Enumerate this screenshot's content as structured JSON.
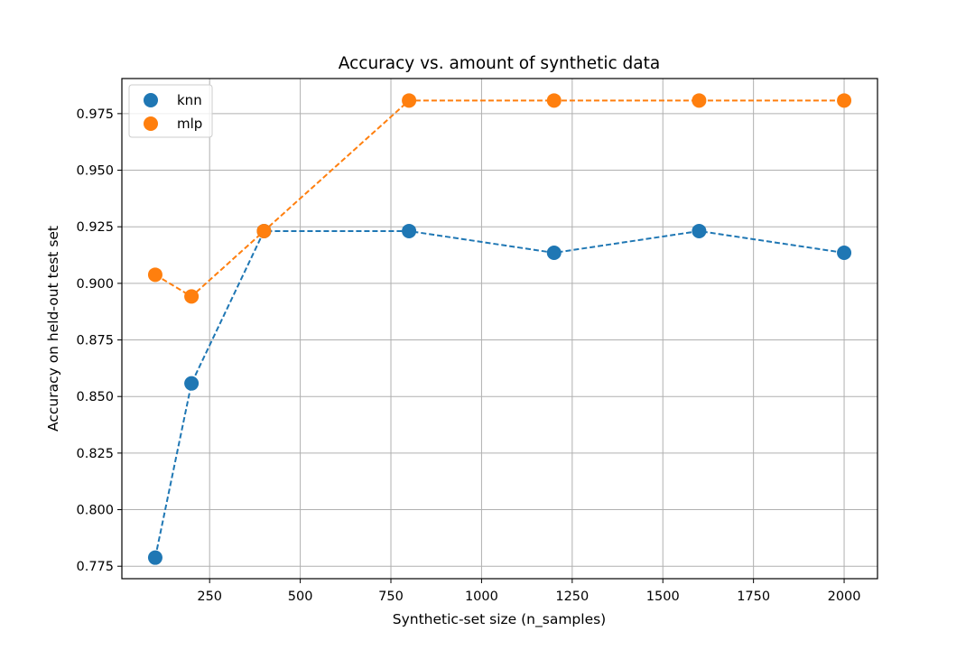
{
  "chart_data": {
    "type": "scatter",
    "title": "Accuracy vs. amount of synthetic data",
    "xlabel": "Synthetic-set size (n_samples)",
    "ylabel": "Accuracy on held-out test set",
    "xlim": [
      8,
      2092
    ],
    "ylim": [
      0.7695,
      0.9905
    ],
    "xticks": [
      250,
      500,
      750,
      1000,
      1250,
      1500,
      1750,
      2000
    ],
    "xtick_labels": [
      "250",
      "500",
      "750",
      "1000",
      "1250",
      "1500",
      "1750",
      "2000"
    ],
    "yticks": [
      0.775,
      0.8,
      0.825,
      0.85,
      0.875,
      0.9,
      0.925,
      0.95,
      0.975
    ],
    "ytick_labels": [
      "0.775",
      "0.800",
      "0.825",
      "0.850",
      "0.875",
      "0.900",
      "0.925",
      "0.950",
      "0.975"
    ],
    "grid": true,
    "legend_position": "top-left",
    "x": [
      100,
      200,
      400,
      800,
      1200,
      1600,
      2000
    ],
    "series": [
      {
        "name": "knn",
        "color": "#1f77b4",
        "values": [
          0.7788,
          0.8558,
          0.9231,
          0.9231,
          0.9135,
          0.9231,
          0.9135
        ]
      },
      {
        "name": "mlp",
        "color": "#ff7f0e",
        "values": [
          0.9038,
          0.8942,
          0.9231,
          0.9808,
          0.9808,
          0.9808,
          0.9808
        ]
      }
    ]
  }
}
